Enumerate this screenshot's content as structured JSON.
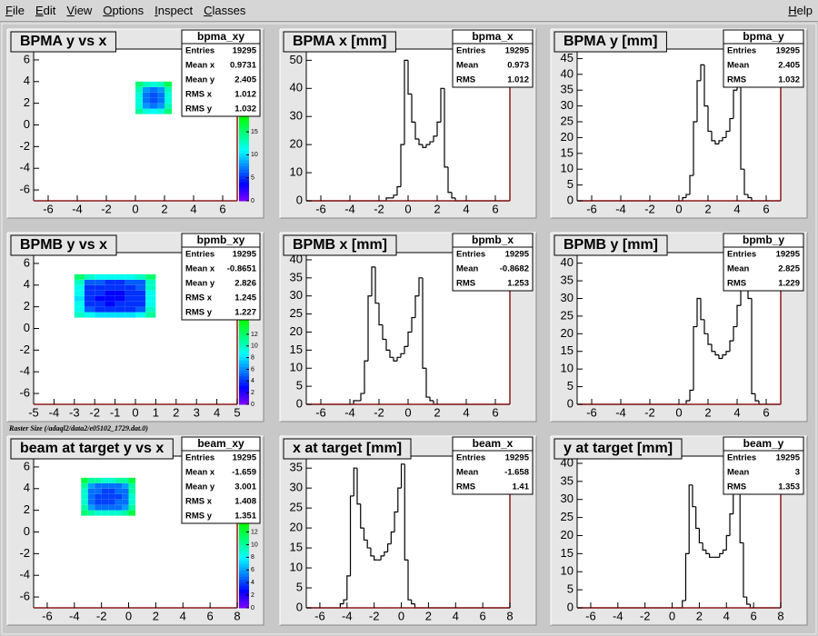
{
  "menu": {
    "items": [
      "File",
      "Edit",
      "View",
      "Options",
      "Inspect",
      "Classes"
    ],
    "help": "Help"
  },
  "caption": "Raster Size (/adaql2/data2/e05102_1729.dat.0)",
  "chart_data": [
    {
      "type": "heatmap",
      "title": "BPMA y vs x",
      "stats": {
        "name": "bpma_xy",
        "rows": [
          [
            "Entries",
            19295
          ],
          [
            "Mean x",
            0.9731
          ],
          [
            "Mean y",
            2.405
          ],
          [
            "RMS x",
            1.012
          ],
          [
            "RMS y",
            1.032
          ]
        ]
      },
      "xlim": [
        -7,
        7
      ],
      "xticks": [
        -6,
        -4,
        -2,
        0,
        2,
        4,
        6
      ],
      "ylim": [
        -7,
        7
      ],
      "yticks": [
        -6,
        -4,
        -2,
        0,
        2,
        4,
        6
      ],
      "zlim": [
        0,
        33
      ],
      "zticks": [
        0,
        5,
        10,
        15
      ],
      "xbins": [
        0,
        0.5,
        1,
        1.5,
        2,
        2.5
      ],
      "ybins": [
        1,
        1.5,
        2,
        2.5,
        3,
        3.5,
        4
      ],
      "values": [
        [
          14,
          12,
          11,
          12,
          15
        ],
        [
          12,
          8,
          7,
          8,
          13
        ],
        [
          12,
          7,
          6,
          7,
          12
        ],
        [
          12,
          7,
          6,
          7,
          12
        ],
        [
          13,
          8,
          7,
          8,
          13
        ],
        [
          15,
          13,
          12,
          13,
          16
        ]
      ]
    },
    {
      "type": "histogram",
      "title": "BPMA x [mm]",
      "color": "#000000",
      "stats": {
        "name": "bpma_x",
        "rows": [
          [
            "Entries",
            19295
          ],
          [
            "Mean",
            0.973
          ],
          [
            "RMS",
            1.012
          ]
        ]
      },
      "xlim": [
        -7,
        7
      ],
      "xticks": [
        -6,
        -4,
        -2,
        0,
        2,
        4,
        6
      ],
      "ylim": [
        0,
        54
      ],
      "yticks": [
        0,
        10,
        20,
        30,
        40,
        50
      ],
      "bins": [
        -7,
        -6.75,
        -6.5,
        -6.25,
        -6,
        -5.75,
        -5.5,
        -5.25,
        -5,
        -4.75,
        -4.5,
        -4.25,
        -4,
        -3.75,
        -3.5,
        -3.25,
        -3,
        -2.75,
        -2.5,
        -2.25,
        -2,
        -1.75,
        -1.5,
        -1.25,
        -1,
        -0.75,
        -0.5,
        -0.25,
        0,
        0.25,
        0.5,
        0.75,
        1,
        1.25,
        1.5,
        1.75,
        2,
        2.25,
        2.5,
        2.75,
        3,
        3.25,
        3.5,
        3.75,
        4,
        4.25,
        4.5,
        4.75,
        5,
        5.25,
        5.5,
        5.75,
        6,
        6.25,
        6.5,
        6.75,
        7
      ],
      "values": [
        0,
        0,
        0,
        0,
        0,
        0,
        0,
        0,
        0,
        0,
        0,
        0,
        0,
        0,
        0,
        0,
        0,
        0,
        0,
        0,
        0,
        0,
        1,
        1,
        2,
        5,
        20,
        50,
        38,
        28,
        22,
        20,
        19,
        20,
        21,
        23,
        28,
        40,
        12,
        3,
        1,
        0,
        0,
        0,
        0,
        0,
        0,
        0,
        0,
        0,
        0,
        0,
        0,
        0,
        0,
        0
      ]
    },
    {
      "type": "histogram",
      "title": "BPMA y [mm]",
      "color": "#000000",
      "stats": {
        "name": "bpma_y",
        "rows": [
          [
            "Entries",
            19295
          ],
          [
            "Mean",
            2.405
          ],
          [
            "RMS",
            1.032
          ]
        ]
      },
      "xlim": [
        -7,
        7
      ],
      "xticks": [
        -6,
        -4,
        -2,
        0,
        2,
        4,
        6
      ],
      "ylim": [
        0,
        48
      ],
      "yticks": [
        0,
        5,
        10,
        15,
        20,
        25,
        30,
        35,
        40,
        45
      ],
      "bins": [
        -7,
        -6.75,
        -6.5,
        -6.25,
        -6,
        -5.75,
        -5.5,
        -5.25,
        -5,
        -4.75,
        -4.5,
        -4.25,
        -4,
        -3.75,
        -3.5,
        -3.25,
        -3,
        -2.75,
        -2.5,
        -2.25,
        -2,
        -1.75,
        -1.5,
        -1.25,
        -1,
        -0.75,
        -0.5,
        -0.25,
        0,
        0.25,
        0.5,
        0.75,
        1,
        1.25,
        1.5,
        1.75,
        2,
        2.25,
        2.5,
        2.75,
        3,
        3.25,
        3.5,
        3.75,
        4,
        4.25,
        4.5,
        4.75,
        5,
        5.25,
        5.5,
        5.75,
        6,
        6.25,
        6.5,
        6.75,
        7
      ],
      "values": [
        0,
        0,
        0,
        0,
        0,
        0,
        0,
        0,
        0,
        0,
        0,
        0,
        0,
        0,
        0,
        0,
        0,
        0,
        0,
        0,
        0,
        0,
        0,
        0,
        0,
        0,
        0,
        0,
        0,
        1,
        2,
        8,
        25,
        38,
        43,
        30,
        22,
        19,
        18,
        19,
        20,
        22,
        26,
        35,
        40,
        10,
        2,
        1,
        0,
        0,
        0,
        0,
        0,
        0,
        0,
        0
      ]
    },
    {
      "type": "heatmap",
      "title": "BPMB y vs x",
      "stats": {
        "name": "bpmb_xy",
        "rows": [
          [
            "Entries",
            19295
          ],
          [
            "Mean x",
            -0.8651
          ],
          [
            "Mean y",
            2.826
          ],
          [
            "RMS x",
            1.245
          ],
          [
            "RMS y",
            1.227
          ]
        ]
      },
      "xlim": [
        -5,
        5
      ],
      "xticks": [
        -5,
        -4,
        -3,
        -2,
        -1,
        0,
        1,
        2,
        3,
        4,
        5
      ],
      "ylim": [
        -7,
        7
      ],
      "yticks": [
        -6,
        -4,
        -2,
        0,
        2,
        4,
        6
      ],
      "zlim": [
        0,
        26
      ],
      "zticks": [
        0,
        2,
        4,
        6,
        8,
        10,
        12
      ],
      "xbins": [
        -3,
        -2.5,
        -2,
        -1.5,
        -1,
        -0.5,
        0,
        0.5,
        1
      ],
      "ybins": [
        1,
        1.5,
        2,
        2.5,
        3,
        3.5,
        4,
        4.5,
        5
      ],
      "values": [
        [
          10,
          9,
          8,
          8,
          8,
          8,
          9,
          11
        ],
        [
          9,
          5,
          4,
          4,
          4,
          4,
          5,
          10
        ],
        [
          9,
          4,
          4,
          3,
          4,
          4,
          4,
          9
        ],
        [
          8,
          4,
          3,
          3,
          3,
          4,
          4,
          9
        ],
        [
          9,
          4,
          4,
          3,
          3,
          4,
          4,
          9
        ],
        [
          9,
          4,
          4,
          4,
          4,
          4,
          5,
          10
        ],
        [
          10,
          5,
          5,
          4,
          4,
          5,
          5,
          10
        ],
        [
          12,
          10,
          9,
          9,
          9,
          9,
          10,
          12
        ]
      ]
    },
    {
      "type": "histogram",
      "title": "BPMB x [mm]",
      "color": "#000000",
      "stats": {
        "name": "bpmb_x",
        "rows": [
          [
            "Entries",
            19295
          ],
          [
            "Mean",
            -0.8682
          ],
          [
            "RMS",
            1.253
          ]
        ]
      },
      "xlim": [
        -7,
        7
      ],
      "xticks": [
        -6,
        -4,
        -2,
        0,
        2,
        4,
        6
      ],
      "ylim": [
        0,
        42
      ],
      "yticks": [
        0,
        5,
        10,
        15,
        20,
        25,
        30,
        35,
        40
      ],
      "bins": [
        -7,
        -6.75,
        -6.5,
        -6.25,
        -6,
        -5.75,
        -5.5,
        -5.25,
        -5,
        -4.75,
        -4.5,
        -4.25,
        -4,
        -3.75,
        -3.5,
        -3.25,
        -3,
        -2.75,
        -2.5,
        -2.25,
        -2,
        -1.75,
        -1.5,
        -1.25,
        -1,
        -0.75,
        -0.5,
        -0.25,
        0,
        0.25,
        0.5,
        0.75,
        1,
        1.25,
        1.5,
        1.75,
        2,
        2.25,
        2.5,
        2.75,
        3,
        3.25,
        3.5,
        3.75,
        4,
        4.25,
        4.5,
        4.75,
        5,
        5.25,
        5.5,
        5.75,
        6,
        6.25,
        6.5,
        6.75,
        7
      ],
      "values": [
        0,
        0,
        0,
        0,
        0,
        0,
        0,
        0,
        0,
        0,
        0,
        0,
        0,
        1,
        1,
        3,
        12,
        30,
        38,
        28,
        22,
        18,
        15,
        13,
        12,
        13,
        14,
        16,
        20,
        24,
        30,
        35,
        10,
        2,
        1,
        0,
        0,
        0,
        0,
        0,
        0,
        0,
        0,
        0,
        0,
        0,
        0,
        0,
        0,
        0,
        0,
        0,
        0,
        0,
        0,
        0
      ]
    },
    {
      "type": "histogram",
      "title": "BPMB y [mm]",
      "color": "#000000",
      "stats": {
        "name": "bpmb_y",
        "rows": [
          [
            "Entries",
            19295
          ],
          [
            "Mean",
            2.825
          ],
          [
            "RMS",
            1.229
          ]
        ]
      },
      "xlim": [
        -7,
        7
      ],
      "xticks": [
        -6,
        -4,
        -2,
        0,
        2,
        4,
        6
      ],
      "ylim": [
        0,
        43
      ],
      "yticks": [
        0,
        5,
        10,
        15,
        20,
        25,
        30,
        35,
        40
      ],
      "bins": [
        -7,
        -6.75,
        -6.5,
        -6.25,
        -6,
        -5.75,
        -5.5,
        -5.25,
        -5,
        -4.75,
        -4.5,
        -4.25,
        -4,
        -3.75,
        -3.5,
        -3.25,
        -3,
        -2.75,
        -2.5,
        -2.25,
        -2,
        -1.75,
        -1.5,
        -1.25,
        -1,
        -0.75,
        -0.5,
        -0.25,
        0,
        0.25,
        0.5,
        0.75,
        1,
        1.25,
        1.5,
        1.75,
        2,
        2.25,
        2.5,
        2.75,
        3,
        3.25,
        3.5,
        3.75,
        4,
        4.25,
        4.5,
        4.75,
        5,
        5.25,
        5.5,
        5.75,
        6,
        6.25,
        6.5,
        6.75,
        7
      ],
      "values": [
        0,
        0,
        0,
        0,
        0,
        0,
        0,
        0,
        0,
        0,
        0,
        0,
        0,
        0,
        0,
        0,
        0,
        0,
        0,
        0,
        0,
        0,
        0,
        0,
        0,
        0,
        0,
        0,
        0,
        0,
        1,
        4,
        22,
        30,
        24,
        20,
        17,
        15,
        14,
        13,
        14,
        15,
        18,
        22,
        28,
        34,
        40,
        30,
        3,
        1,
        0,
        0,
        0,
        0,
        0,
        0
      ]
    },
    {
      "type": "heatmap",
      "title": "beam at target y vs x",
      "stats": {
        "name": "beam_xy",
        "rows": [
          [
            "Entries",
            19295
          ],
          [
            "Mean x",
            -1.659
          ],
          [
            "Mean y",
            3.001
          ],
          [
            "RMS x",
            1.408
          ],
          [
            "RMS y",
            1.351
          ]
        ]
      },
      "xlim": [
        -7,
        8
      ],
      "xticks": [
        -6,
        -4,
        -2,
        0,
        2,
        4,
        6,
        8
      ],
      "ylim": [
        -7,
        7
      ],
      "yticks": [
        -6,
        -4,
        -2,
        0,
        2,
        4,
        6
      ],
      "zlim": [
        0,
        24
      ],
      "zticks": [
        0,
        2,
        4,
        6,
        8,
        10,
        12
      ],
      "xbins": [
        -3.5,
        -3,
        -2.5,
        -2,
        -1.5,
        -1,
        -0.5,
        0,
        0.5
      ],
      "ybins": [
        1.5,
        2,
        2.5,
        3,
        3.5,
        4,
        4.5,
        5
      ],
      "values": [
        [
          11,
          10,
          9,
          9,
          9,
          9,
          10,
          12
        ],
        [
          10,
          6,
          5,
          5,
          5,
          5,
          6,
          10
        ],
        [
          9,
          5,
          4,
          4,
          4,
          5,
          5,
          9
        ],
        [
          9,
          5,
          4,
          4,
          4,
          4,
          5,
          9
        ],
        [
          9,
          5,
          5,
          4,
          4,
          5,
          5,
          10
        ],
        [
          10,
          6,
          5,
          5,
          5,
          5,
          6,
          10
        ],
        [
          12,
          10,
          10,
          9,
          9,
          10,
          10,
          12
        ]
      ]
    },
    {
      "type": "histogram",
      "title": "x at target [mm]",
      "color": "#000000",
      "stats": {
        "name": "beam_x",
        "rows": [
          [
            "Entries",
            19295
          ],
          [
            "Mean",
            -1.658
          ],
          [
            "RMS",
            1.41
          ]
        ]
      },
      "xlim": [
        -7,
        8
      ],
      "xticks": [
        -6,
        -4,
        -2,
        0,
        2,
        4,
        6,
        8
      ],
      "ylim": [
        0,
        38
      ],
      "yticks": [
        0,
        5,
        10,
        15,
        20,
        25,
        30,
        35
      ],
      "bins": [
        -7,
        -6.75,
        -6.5,
        -6.25,
        -6,
        -5.75,
        -5.5,
        -5.25,
        -5,
        -4.75,
        -4.5,
        -4.25,
        -4,
        -3.75,
        -3.5,
        -3.25,
        -3,
        -2.75,
        -2.5,
        -2.25,
        -2,
        -1.75,
        -1.5,
        -1.25,
        -1,
        -0.75,
        -0.5,
        -0.25,
        0,
        0.25,
        0.5,
        0.75,
        1,
        1.25,
        1.5,
        1.75,
        2,
        2.25,
        2.5,
        2.75,
        3,
        3.25,
        3.5,
        3.75,
        4,
        4.25,
        4.5,
        4.75,
        5,
        5.25,
        5.5,
        5.75,
        6,
        6.25,
        6.5,
        6.75,
        7,
        7.25,
        7.5,
        7.75,
        8
      ],
      "values": [
        0,
        0,
        0,
        0,
        0,
        0,
        0,
        0,
        0,
        0,
        1,
        2,
        8,
        28,
        35,
        26,
        20,
        17,
        15,
        13,
        12,
        12,
        13,
        14,
        16,
        19,
        24,
        30,
        36,
        12,
        2,
        1,
        0,
        0,
        0,
        0,
        0,
        0,
        0,
        0,
        0,
        0,
        0,
        0,
        0,
        0,
        0,
        0,
        0,
        0,
        0,
        0,
        0,
        0,
        0,
        0,
        0,
        0,
        0,
        0
      ]
    },
    {
      "type": "histogram",
      "title": "y at target [mm]",
      "color": "#000000",
      "stats": {
        "name": "beam_y",
        "rows": [
          [
            "Entries",
            19295
          ],
          [
            "Mean",
            3
          ],
          [
            "RMS",
            1.353
          ]
        ]
      },
      "xlim": [
        -7,
        8
      ],
      "xticks": [
        -6,
        -4,
        -2,
        0,
        2,
        4,
        6,
        8
      ],
      "ylim": [
        0,
        42
      ],
      "yticks": [
        0,
        5,
        10,
        15,
        20,
        25,
        30,
        35,
        40
      ],
      "bins": [
        -7,
        -6.75,
        -6.5,
        -6.25,
        -6,
        -5.75,
        -5.5,
        -5.25,
        -5,
        -4.75,
        -4.5,
        -4.25,
        -4,
        -3.75,
        -3.5,
        -3.25,
        -3,
        -2.75,
        -2.5,
        -2.25,
        -2,
        -1.75,
        -1.5,
        -1.25,
        -1,
        -0.75,
        -0.5,
        -0.25,
        0,
        0.25,
        0.5,
        0.75,
        1,
        1.25,
        1.5,
        1.75,
        2,
        2.25,
        2.5,
        2.75,
        3,
        3.25,
        3.5,
        3.75,
        4,
        4.25,
        4.5,
        4.75,
        5,
        5.25,
        5.5,
        5.75,
        6,
        6.25,
        6.5,
        6.75,
        7,
        7.25,
        7.5,
        7.75,
        8
      ],
      "values": [
        0,
        0,
        0,
        0,
        0,
        0,
        0,
        0,
        0,
        0,
        0,
        0,
        0,
        0,
        0,
        0,
        0,
        0,
        0,
        0,
        0,
        0,
        0,
        0,
        0,
        0,
        0,
        0,
        0,
        0,
        0,
        2,
        15,
        34,
        28,
        22,
        18,
        16,
        15,
        14,
        14,
        14,
        15,
        16,
        20,
        26,
        32,
        38,
        18,
        3,
        1,
        0,
        0,
        0,
        0,
        0,
        0,
        0,
        0,
        0
      ]
    }
  ]
}
